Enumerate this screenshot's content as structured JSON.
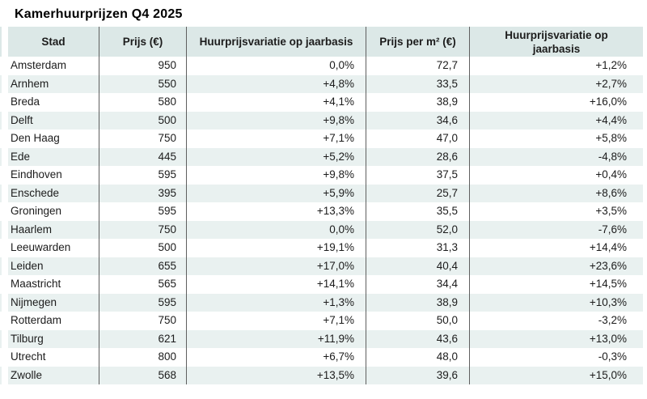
{
  "page": {
    "title": "Kamerhuurprijzen Q4 2025"
  },
  "chart_data": {
    "type": "table",
    "title": "Kamerhuurprijzen Q4 2025",
    "columns": [
      "Stad",
      "Prijs (€)",
      "Huurprijsvariatie op jaarbasis",
      "Prijs per m² (€)",
      "Huurprijsvariatie op jaarbasis"
    ],
    "rows": [
      [
        "Amsterdam",
        "950",
        "0,0%",
        "72,7",
        "+1,2%"
      ],
      [
        "Arnhem",
        "550",
        "+4,8%",
        "33,5",
        "+2,7%"
      ],
      [
        "Breda",
        "580",
        "+4,1%",
        "38,9",
        "+16,0%"
      ],
      [
        "Delft",
        "500",
        "+9,8%",
        "34,6",
        "+4,4%"
      ],
      [
        "Den Haag",
        "750",
        "+7,1%",
        "47,0",
        "+5,8%"
      ],
      [
        "Ede",
        "445",
        "+5,2%",
        "28,6",
        "-4,8%"
      ],
      [
        "Eindhoven",
        "595",
        "+9,8%",
        "37,5",
        "+0,4%"
      ],
      [
        "Enschede",
        "395",
        "+5,9%",
        "25,7",
        "+8,6%"
      ],
      [
        "Groningen",
        "595",
        "+13,3%",
        "35,5",
        "+3,5%"
      ],
      [
        "Haarlem",
        "750",
        "0,0%",
        "52,0",
        "-7,6%"
      ],
      [
        "Leeuwarden",
        "500",
        "+19,1%",
        "31,3",
        "+14,4%"
      ],
      [
        "Leiden",
        "655",
        "+17,0%",
        "40,4",
        "+23,6%"
      ],
      [
        "Maastricht",
        "565",
        "+14,1%",
        "34,4",
        "+14,5%"
      ],
      [
        "Nijmegen",
        "595",
        "+1,3%",
        "38,9",
        "+10,3%"
      ],
      [
        "Rotterdam",
        "750",
        "+7,1%",
        "50,0",
        "-3,2%"
      ],
      [
        "Tilburg",
        "621",
        "+11,9%",
        "43,6",
        "+13,0%"
      ],
      [
        "Utrecht",
        "800",
        "+6,7%",
        "48,0",
        "-0,3%"
      ],
      [
        "Zwolle",
        "568",
        "+13,5%",
        "39,6",
        "+15,0%"
      ]
    ]
  },
  "colors": {
    "header_bg": "#dce8e7",
    "stripe_bg": "#e9f1f0",
    "divider": "#5f5f5f",
    "text": "#1c1c1c"
  }
}
